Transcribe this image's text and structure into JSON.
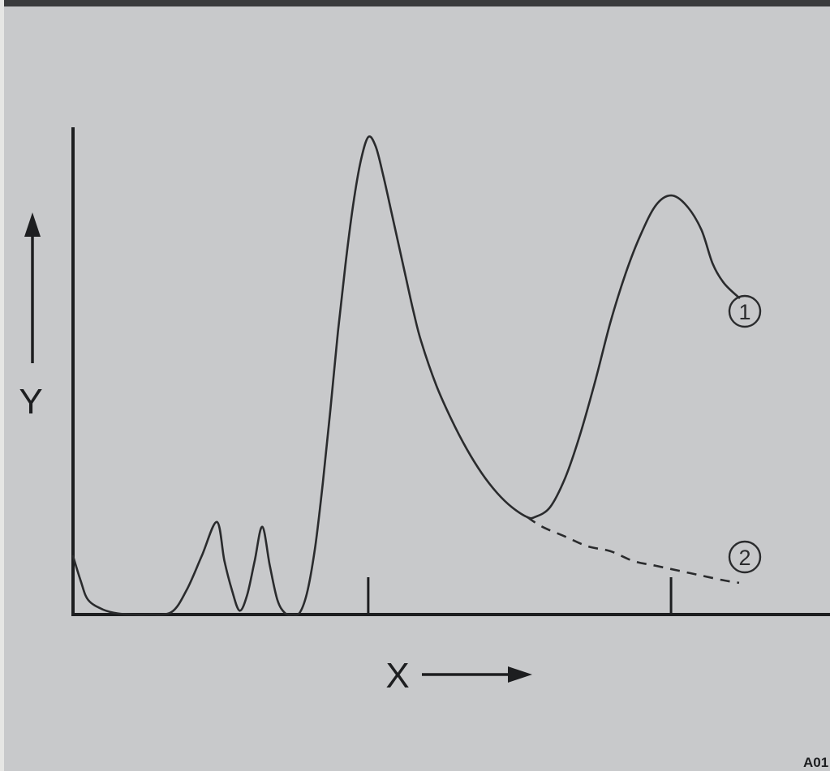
{
  "chart_data": {
    "type": "line",
    "title": "",
    "xlabel": "X",
    "ylabel": "Y",
    "xlim": [
      0,
      100
    ],
    "ylim": [
      0,
      100
    ],
    "x_ticks": [
      39,
      79
    ],
    "grid": false,
    "legend": "none",
    "series": [
      {
        "name": "1",
        "style": "solid",
        "x": [
          0,
          1,
          2,
          4,
          6,
          8,
          10,
          13,
          15,
          17,
          19,
          20,
          21,
          22,
          23,
          24,
          25,
          26,
          27,
          28,
          29,
          30,
          31,
          32,
          33,
          34,
          35,
          36,
          37,
          38,
          39,
          40,
          41,
          42,
          43,
          44,
          45,
          46,
          48,
          50,
          52,
          54,
          56,
          58,
          60,
          61,
          63,
          65,
          67,
          69,
          71,
          73,
          75,
          77,
          79,
          81,
          83,
          84.5,
          86,
          88
        ],
        "y": [
          12,
          7,
          3,
          1,
          0.2,
          0,
          0,
          0.5,
          5,
          12,
          19,
          11,
          5,
          0.8,
          4,
          11,
          18,
          10,
          3,
          0.3,
          0,
          0.5,
          5,
          14,
          27,
          42,
          58,
          72,
          84,
          93,
          98,
          96,
          90,
          83,
          76,
          69,
          62,
          56,
          47,
          40,
          34,
          29,
          25,
          22,
          20,
          20,
          22,
          28,
          37,
          48,
          60,
          70,
          78,
          84,
          86,
          84,
          79,
          72,
          68,
          65
        ],
        "label": "1"
      },
      {
        "name": "2",
        "style": "dashed",
        "x": [
          60,
          62,
          65,
          68,
          71,
          74,
          77,
          80,
          83,
          86,
          88
        ],
        "y": [
          20,
          18,
          16,
          14,
          13,
          11,
          10,
          9,
          8,
          7,
          6.5
        ],
        "label": "2"
      }
    ],
    "annotations": [
      "1",
      "2"
    ],
    "corner_code": "A01"
  }
}
